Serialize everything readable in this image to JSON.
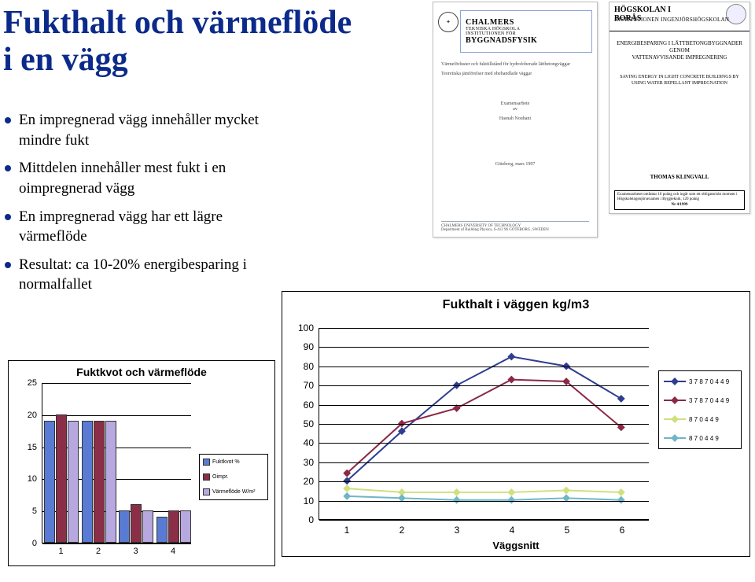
{
  "title": "Fukthalt och värmeflöde\ni en vägg",
  "title_color": "#0b2a8a",
  "bullets": [
    "En impregnerad vägg innehåller mycket mindre fukt",
    "Mittdelen innehåller mest fukt i en oimpregnerad vägg",
    "En impregnerad vägg har ett lägre värmeflöde",
    "Resultat: ca  10-20% energibesparing i normalfallet"
  ],
  "doc_left": {
    "banner_l1": "CHALMERS",
    "banner_l2": "TEKNISKA HÖGSKOLA",
    "banner_l3": "BYGGNADSFYSIK",
    "banner_l2_pre": "INSTITUTIONEN FÖR",
    "body_title": "Värmeförluster och fukttillstånd för hydrofoberade lättbetongväggar",
    "body_sub": "Teoretiska jämförelser med obehandlade väggar",
    "author": "Hasnah Nouhani",
    "date": "Göteborg, mars 1997",
    "foot1": "CHALMERS UNIVERSITY OF TECHNOLOGY",
    "foot2": "Department of Building Physics, S-412 96 GÖTEBORG, SWEDEN"
  },
  "doc_right": {
    "hdr1": "HÖGSKOLAN I",
    "hdr2": "BORÅS",
    "sub": "INSTITUTIONEN INGENJÖRSHÖGSKOLAN",
    "mid1": "ENERGIBESPARING I LÄTTBETONGBYGGNADER",
    "mid2": "GENOM",
    "mid3": "VATTENAVVISANDE IMPREGNERING",
    "mid4": "SAVING ENERGY IN LIGHT CONCRETE BUILDINGS BY USING WATER REPELLANT IMPREGNATION",
    "author": "THOMAS KLINGVALL",
    "foot": "Examensarbetet omfattar 10 poäng och ingår som ett obligatoriskt moment i Högskoleingenjörsexamen i Byggteknik, 120 poäng",
    "foot_nr": "Nr 4/1999"
  },
  "bar_chart": {
    "title": "Fuktkvot och värmeflöde",
    "ylim": [
      0,
      25
    ],
    "ytick_step": 5,
    "categories": [
      "1",
      "2",
      "3",
      "4"
    ],
    "series": [
      {
        "label": "Fuktkvot %",
        "color": "#5a7bd4",
        "values": [
          19,
          19,
          5,
          4
        ]
      },
      {
        "label": "Oimpr.",
        "color": "#8b2e48",
        "values": [
          20,
          19,
          6,
          5
        ]
      },
      {
        "label": "Värmeflöde W/m²",
        "color": "#b8a8e0",
        "values": [
          19,
          19,
          5,
          5
        ]
      }
    ],
    "legend_extra": [
      "Fuktkvot",
      "Värmefl."
    ],
    "bg": "#ffffff",
    "grid_color": "#000000",
    "fontsize_axis": 11,
    "fontsize_title": 14
  },
  "line_chart": {
    "title": "Fukthalt i väggen kg/m3",
    "xlabel": "Väggsnitt",
    "ylim": [
      0,
      100
    ],
    "ytick_step": 10,
    "x_categories": [
      "1",
      "2",
      "3",
      "4",
      "5",
      "6"
    ],
    "series": [
      {
        "label": "37870449",
        "color": "#2e3d8f",
        "marker": "#2e3d8f",
        "values": [
          20,
          46,
          70,
          85,
          80,
          63
        ]
      },
      {
        "label": "37870449",
        "color": "#8a2846",
        "marker": "#8a2846",
        "values": [
          24,
          50,
          58,
          73,
          72,
          48
        ]
      },
      {
        "label": "870449",
        "color": "#cfe07c",
        "marker": "#cfe07c",
        "values": [
          16,
          14,
          14,
          14,
          15,
          14
        ]
      },
      {
        "label": "870449",
        "color": "#6fb5c8",
        "marker": "#6fb5c8",
        "values": [
          12,
          11,
          10,
          10,
          11,
          10
        ]
      }
    ],
    "bg": "#ffffff",
    "grid_color": "#000000",
    "line_width": 2,
    "marker_size": 7,
    "fontsize_axis": 12,
    "fontsize_title": 16
  }
}
